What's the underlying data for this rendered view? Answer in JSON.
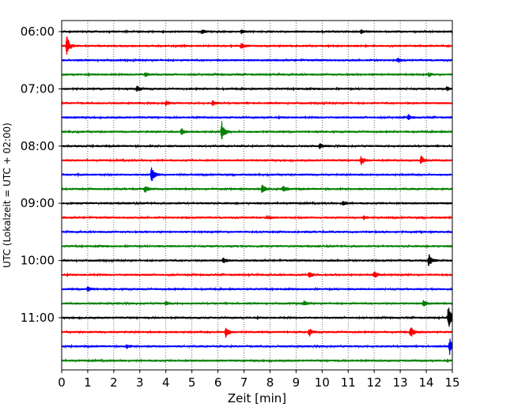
{
  "chart_data": {
    "type": "line",
    "title": "",
    "xlabel": "Zeit  [min]",
    "ylabel": "UTC (Lokalzeit = UTC + 02:00)",
    "xlim": [
      0,
      15
    ],
    "x_ticks": [
      0,
      1,
      2,
      3,
      4,
      5,
      6,
      7,
      8,
      9,
      10,
      11,
      12,
      13,
      14,
      15
    ],
    "x_tick_labels": [
      "0",
      "1",
      "2",
      "3",
      "4",
      "5",
      "6",
      "7",
      "8",
      "9",
      "10",
      "11",
      "12",
      "13",
      "14",
      "15"
    ],
    "y_tick_labels": [
      "06:00",
      "07:00",
      "08:00",
      "09:00",
      "10:00",
      "11:00"
    ],
    "grid": "vertical dotted at each minute",
    "row_interval_minutes": 15,
    "row_start": "06:00",
    "color_cycle": [
      "#000000",
      "#ff0000",
      "#0000ff",
      "#008000"
    ],
    "series": [
      {
        "row_start": "06:00",
        "color": "#000000",
        "events": [
          {
            "x": 5.4,
            "amp": 0.22
          },
          {
            "x": 6.9,
            "amp": 0.18
          },
          {
            "x": 11.5,
            "amp": 0.18
          }
        ]
      },
      {
        "row_start": "06:15",
        "color": "#ff0000",
        "events": [
          {
            "x": 0.2,
            "amp": 1.2
          },
          {
            "x": 6.9,
            "amp": 0.35
          }
        ]
      },
      {
        "row_start": "06:30",
        "color": "#0000ff",
        "events": [
          {
            "x": 12.9,
            "amp": 0.25
          }
        ]
      },
      {
        "row_start": "06:45",
        "color": "#008000",
        "events": [
          {
            "x": 3.2,
            "amp": 0.22
          },
          {
            "x": 14.1,
            "amp": 0.2
          }
        ]
      },
      {
        "row_start": "07:00",
        "color": "#000000",
        "events": [
          {
            "x": 2.9,
            "amp": 0.4
          },
          {
            "x": 14.8,
            "amp": 0.22
          }
        ]
      },
      {
        "row_start": "07:15",
        "color": "#ff0000",
        "events": [
          {
            "x": 4.0,
            "amp": 0.28
          },
          {
            "x": 5.8,
            "amp": 0.25
          }
        ]
      },
      {
        "row_start": "07:30",
        "color": "#0000ff",
        "events": [
          {
            "x": 13.3,
            "amp": 0.3
          }
        ]
      },
      {
        "row_start": "07:45",
        "color": "#008000",
        "events": [
          {
            "x": 4.6,
            "amp": 0.35
          },
          {
            "x": 6.15,
            "amp": 1.1
          }
        ]
      },
      {
        "row_start": "08:00",
        "color": "#000000",
        "events": [
          {
            "x": 9.9,
            "amp": 0.3
          }
        ]
      },
      {
        "row_start": "08:15",
        "color": "#ff0000",
        "events": [
          {
            "x": 11.5,
            "amp": 0.55
          },
          {
            "x": 13.8,
            "amp": 0.5
          }
        ]
      },
      {
        "row_start": "08:30",
        "color": "#0000ff",
        "events": [
          {
            "x": 3.45,
            "amp": 1.0
          }
        ]
      },
      {
        "row_start": "08:45",
        "color": "#008000",
        "events": [
          {
            "x": 3.2,
            "amp": 0.4
          },
          {
            "x": 7.7,
            "amp": 0.55
          },
          {
            "x": 8.5,
            "amp": 0.45
          }
        ]
      },
      {
        "row_start": "09:00",
        "color": "#000000",
        "events": [
          {
            "x": 10.8,
            "amp": 0.3
          }
        ]
      },
      {
        "row_start": "09:15",
        "color": "#ff0000",
        "events": [
          {
            "x": 7.9,
            "amp": 0.22
          },
          {
            "x": 11.6,
            "amp": 0.2
          }
        ]
      },
      {
        "row_start": "09:30",
        "color": "#0000ff",
        "events": []
      },
      {
        "row_start": "09:45",
        "color": "#008000",
        "events": []
      },
      {
        "row_start": "10:00",
        "color": "#000000",
        "events": [
          {
            "x": 6.2,
            "amp": 0.3
          },
          {
            "x": 14.1,
            "amp": 0.75
          }
        ]
      },
      {
        "row_start": "10:15",
        "color": "#ff0000",
        "events": [
          {
            "x": 9.5,
            "amp": 0.4
          },
          {
            "x": 12.0,
            "amp": 0.4
          }
        ]
      },
      {
        "row_start": "10:30",
        "color": "#0000ff",
        "events": [
          {
            "x": 1.0,
            "amp": 0.3
          }
        ]
      },
      {
        "row_start": "10:45",
        "color": "#008000",
        "events": [
          {
            "x": 4.0,
            "amp": 0.22
          },
          {
            "x": 9.3,
            "amp": 0.3
          },
          {
            "x": 13.9,
            "amp": 0.35
          }
        ]
      },
      {
        "row_start": "11:00",
        "color": "#000000",
        "events": [
          {
            "x": 14.85,
            "amp": 1.5
          }
        ]
      },
      {
        "row_start": "11:15",
        "color": "#ff0000",
        "events": [
          {
            "x": 6.3,
            "amp": 0.6
          },
          {
            "x": 9.5,
            "amp": 0.5
          },
          {
            "x": 13.4,
            "amp": 0.7
          }
        ]
      },
      {
        "row_start": "11:30",
        "color": "#0000ff",
        "events": [
          {
            "x": 2.5,
            "amp": 0.22
          },
          {
            "x": 14.9,
            "amp": 0.9
          }
        ]
      },
      {
        "row_start": "11:45",
        "color": "#008000",
        "events": []
      }
    ]
  }
}
